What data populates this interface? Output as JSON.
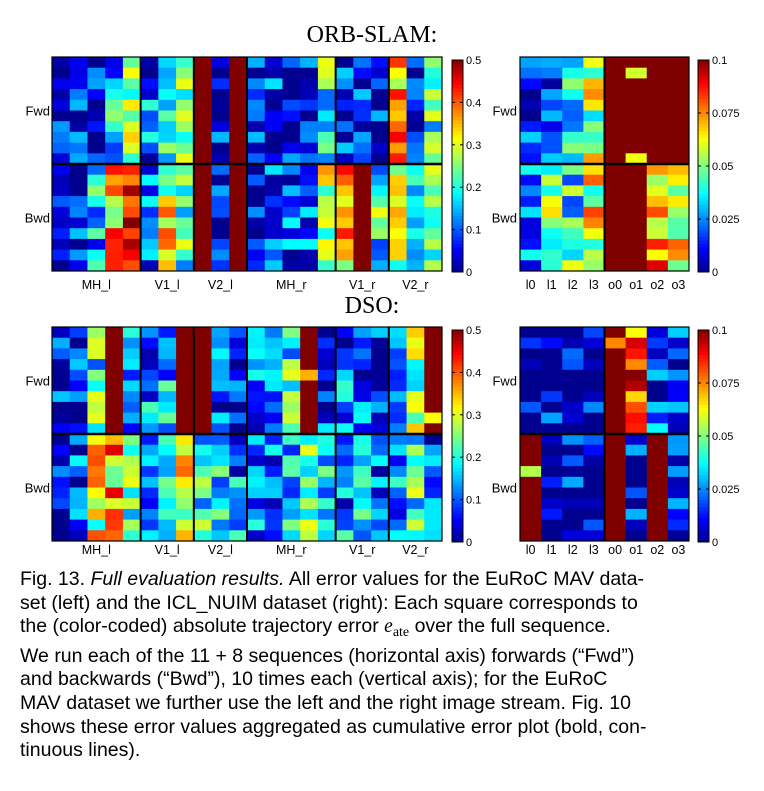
{
  "colors": {
    "scale": [
      "#00008f",
      "#0000ff",
      "#00ffff",
      "#ffff00",
      "#ff0000",
      "#800000"
    ],
    "divider": "#000000"
  },
  "chart_data": [
    {
      "id": "orb_euroc",
      "type": "heatmap",
      "panel_title": "ORB-SLAM:",
      "row_groups": [
        "Fwd",
        "Bwd"
      ],
      "rows_per_group": 10,
      "columns": 22,
      "x_tick_labels": [
        "MH_l",
        "V1_l",
        "V2_l",
        "MH_r",
        "V1_r",
        "V2_r"
      ],
      "column_groups": [
        5,
        3,
        3,
        5,
        3,
        3
      ],
      "colorbar": {
        "min": 0,
        "max": 0.5,
        "ticks": [
          "0",
          "0.1",
          "0.2",
          "0.3",
          "0.4",
          "0.5"
        ]
      },
      "fwd": [
        0.05,
        0.06,
        0.05,
        0.15,
        0.25,
        0.1,
        0.18,
        0.2,
        0.5,
        0.05,
        0.5,
        0.04,
        0.06,
        0.05,
        0.04,
        0.2,
        0.05,
        0.1,
        0.05,
        0.35,
        0.05,
        0.2
      ],
      "bwd": [
        0.05,
        0.06,
        0.15,
        0.35,
        0.45,
        0.1,
        0.3,
        0.2,
        0.5,
        0.05,
        0.5,
        0.04,
        0.08,
        0.1,
        0.12,
        0.3,
        0.35,
        0.5,
        0.2,
        0.3,
        0.15,
        0.2
      ]
    },
    {
      "id": "orb_icl",
      "type": "heatmap",
      "row_groups": [
        "Fwd",
        "Bwd"
      ],
      "rows_per_group": 10,
      "columns": 8,
      "x_tick_labels": [
        "l0",
        "l1",
        "l2",
        "l3",
        "o0",
        "o1",
        "o2",
        "o3"
      ],
      "colorbar": {
        "min": 0,
        "max": 0.1,
        "ticks": [
          "0",
          "0.025",
          "0.05",
          "0.075",
          "0.1"
        ]
      },
      "fwd": [
        0.01,
        0.02,
        0.04,
        0.055,
        0.1,
        0.1,
        0.1,
        0.1
      ],
      "bwd": [
        0.02,
        0.05,
        0.04,
        0.06,
        0.1,
        0.1,
        0.07,
        0.065
      ]
    },
    {
      "id": "dso_euroc",
      "type": "heatmap",
      "panel_title": "DSO:",
      "row_groups": [
        "Fwd",
        "Bwd"
      ],
      "rows_per_group": 10,
      "columns": 22,
      "x_tick_labels": [
        "MH_l",
        "V1_l",
        "V2_l",
        "MH_r",
        "V1_r",
        "V2_r"
      ],
      "column_groups": [
        5,
        3,
        3,
        5,
        3,
        3
      ],
      "colorbar": {
        "min": 0,
        "max": 0.5,
        "ticks": [
          "0",
          "0.1",
          "0.2",
          "0.3",
          "0.4",
          "0.5"
        ]
      },
      "fwd": [
        0.05,
        0.08,
        0.2,
        0.5,
        0.1,
        0.12,
        0.15,
        0.5,
        0.5,
        0.1,
        0.06,
        0.1,
        0.12,
        0.2,
        0.5,
        0.08,
        0.1,
        0.1,
        0.05,
        0.1,
        0.25,
        0.5
      ],
      "bwd": [
        0.05,
        0.08,
        0.3,
        0.35,
        0.2,
        0.15,
        0.18,
        0.3,
        0.2,
        0.15,
        0.12,
        0.1,
        0.12,
        0.15,
        0.2,
        0.15,
        0.12,
        0.2,
        0.1,
        0.15,
        0.2,
        0.1
      ]
    },
    {
      "id": "dso_icl",
      "type": "heatmap",
      "row_groups": [
        "Fwd",
        "Bwd"
      ],
      "rows_per_group": 10,
      "columns": 8,
      "x_tick_labels": [
        "l0",
        "l1",
        "l2",
        "l3",
        "o0",
        "o1",
        "o2",
        "o3"
      ],
      "colorbar": {
        "min": 0,
        "max": 0.1,
        "ticks": [
          "0",
          "0.025",
          "0.05",
          "0.075",
          "0.1"
        ]
      },
      "fwd": [
        0.005,
        0.005,
        0.006,
        0.005,
        0.1,
        0.08,
        0.015,
        0.01
      ],
      "bwd": [
        0.1,
        0.005,
        0.006,
        0.005,
        0.1,
        0.01,
        0.1,
        0.02
      ]
    }
  ],
  "caption": {
    "fig_label": "Fig. 13.",
    "title": "Full evaluation results.",
    "line1_rest": "All error values for the EuRoC MAV data-",
    "line2": "set (left) and the ICL_NUIM dataset (right): Each square corresponds to",
    "line3_pre": "the (color-coded) absolute trajectory error",
    "math_var": "e",
    "math_sub": "ate",
    "line3_post": "over the full sequence.",
    "line4": "We run each of the 11 + 8 sequences (horizontal axis) forwards (“Fwd”)",
    "line5": "and backwards (“Bwd”), 10 times each (vertical axis); for the EuRoC",
    "line6": "MAV dataset we further use the left and the right image stream. Fig. 10",
    "line7": "shows these error values aggregated as cumulative error plot (bold, con-",
    "line8": "tinuous lines)."
  }
}
